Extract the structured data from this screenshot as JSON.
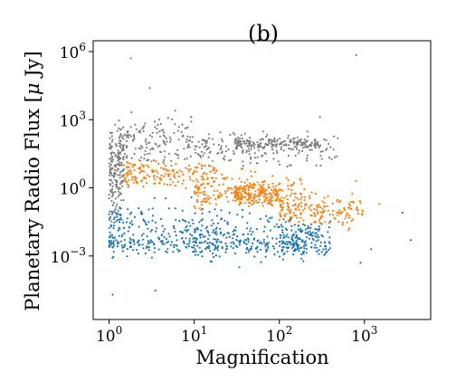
{
  "chart_data": {
    "type": "scatter",
    "title": "(b)",
    "xlabel": "Magnification",
    "ylabel": "Planetary Radio Flux [$\\mu$ Jy]",
    "xscale": "log",
    "yscale": "log",
    "xlim": [
      0.65,
      6000
    ],
    "ylim": [
      1.6e-06,
      3000000
    ],
    "xticks": [
      {
        "value": 1,
        "label": "10^0",
        "base": "10",
        "exp": "0"
      },
      {
        "value": 10,
        "label": "10^1",
        "base": "10",
        "exp": "1"
      },
      {
        "value": 100,
        "label": "10^2",
        "base": "10",
        "exp": "2"
      },
      {
        "value": 1000,
        "label": "10^3",
        "base": "10",
        "exp": "3"
      }
    ],
    "yticks": [
      {
        "value": 0.001,
        "label": "10^-3",
        "base": "10",
        "exp": "−3"
      },
      {
        "value": 1,
        "label": "10^0",
        "base": "10",
        "exp": "0"
      },
      {
        "value": 1000,
        "label": "10^3",
        "base": "10",
        "exp": "3"
      },
      {
        "value": 1000000,
        "label": "10^6",
        "base": "10",
        "exp": "6"
      }
    ],
    "grid": false,
    "legend": "none",
    "series": [
      {
        "color": "#7f7f7f",
        "marker_size": "small",
        "clusters": [
          {
            "x_range": [
              1,
              1.5
            ],
            "y_range": [
              0.01,
              2000
            ]
          },
          {
            "x_range": [
              1.3,
              10
            ],
            "y_range": [
              3,
              5000
            ]
          },
          {
            "x_range": [
              10,
              500
            ],
            "y_range": [
              5,
              500
            ]
          },
          {
            "x_range": [
              30,
              300
            ],
            "y_range": [
              40,
              200
            ]
          }
        ],
        "outliers": [
          {
            "x": 1.8,
            "y": 500000
          },
          {
            "x": 3.0,
            "y": 25000
          },
          {
            "x": 6.0,
            "y": 2500
          },
          {
            "x": 300,
            "y": 1300
          },
          {
            "x": 800,
            "y": 700000
          }
        ]
      },
      {
        "color": "#ff7f0e",
        "marker_size": "small",
        "clusters": [
          {
            "x_range": [
              1.5,
              20
            ],
            "y_range": [
              0.5,
              30
            ]
          },
          {
            "x_range": [
              10,
              200
            ],
            "y_range": [
              0.05,
              10
            ]
          },
          {
            "x_range": [
              30,
              100
            ],
            "y_range": [
              0.1,
              3
            ]
          },
          {
            "x_range": [
              100,
              1000
            ],
            "y_range": [
              0.01,
              1
            ]
          }
        ],
        "outliers": [
          {
            "x": 1500,
            "y": 0.2
          },
          {
            "x": 800,
            "y": 2
          }
        ]
      },
      {
        "color": "#1f77b4",
        "marker_size": "small",
        "clusters": [
          {
            "x_range": [
              1,
              10
            ],
            "y_range": [
              0.0003,
              0.8
            ]
          },
          {
            "x_range": [
              10,
              100
            ],
            "y_range": [
              0.0002,
              0.3
            ]
          },
          {
            "x_range": [
              100,
              400
            ],
            "y_range": [
              0.0003,
              0.1
            ]
          },
          {
            "x_range": [
              1,
              300
            ],
            "y_range": [
              0.001,
              0.01
            ]
          }
        ],
        "outliers": [
          {
            "x": 1.1,
            "y": 2e-05
          },
          {
            "x": 3.5,
            "y": 3e-05
          },
          {
            "x": 900,
            "y": 0.0005
          },
          {
            "x": 1200,
            "y": 0.002
          },
          {
            "x": 3500,
            "y": 0.005
          },
          {
            "x": 2800,
            "y": 0.08
          }
        ]
      }
    ]
  }
}
